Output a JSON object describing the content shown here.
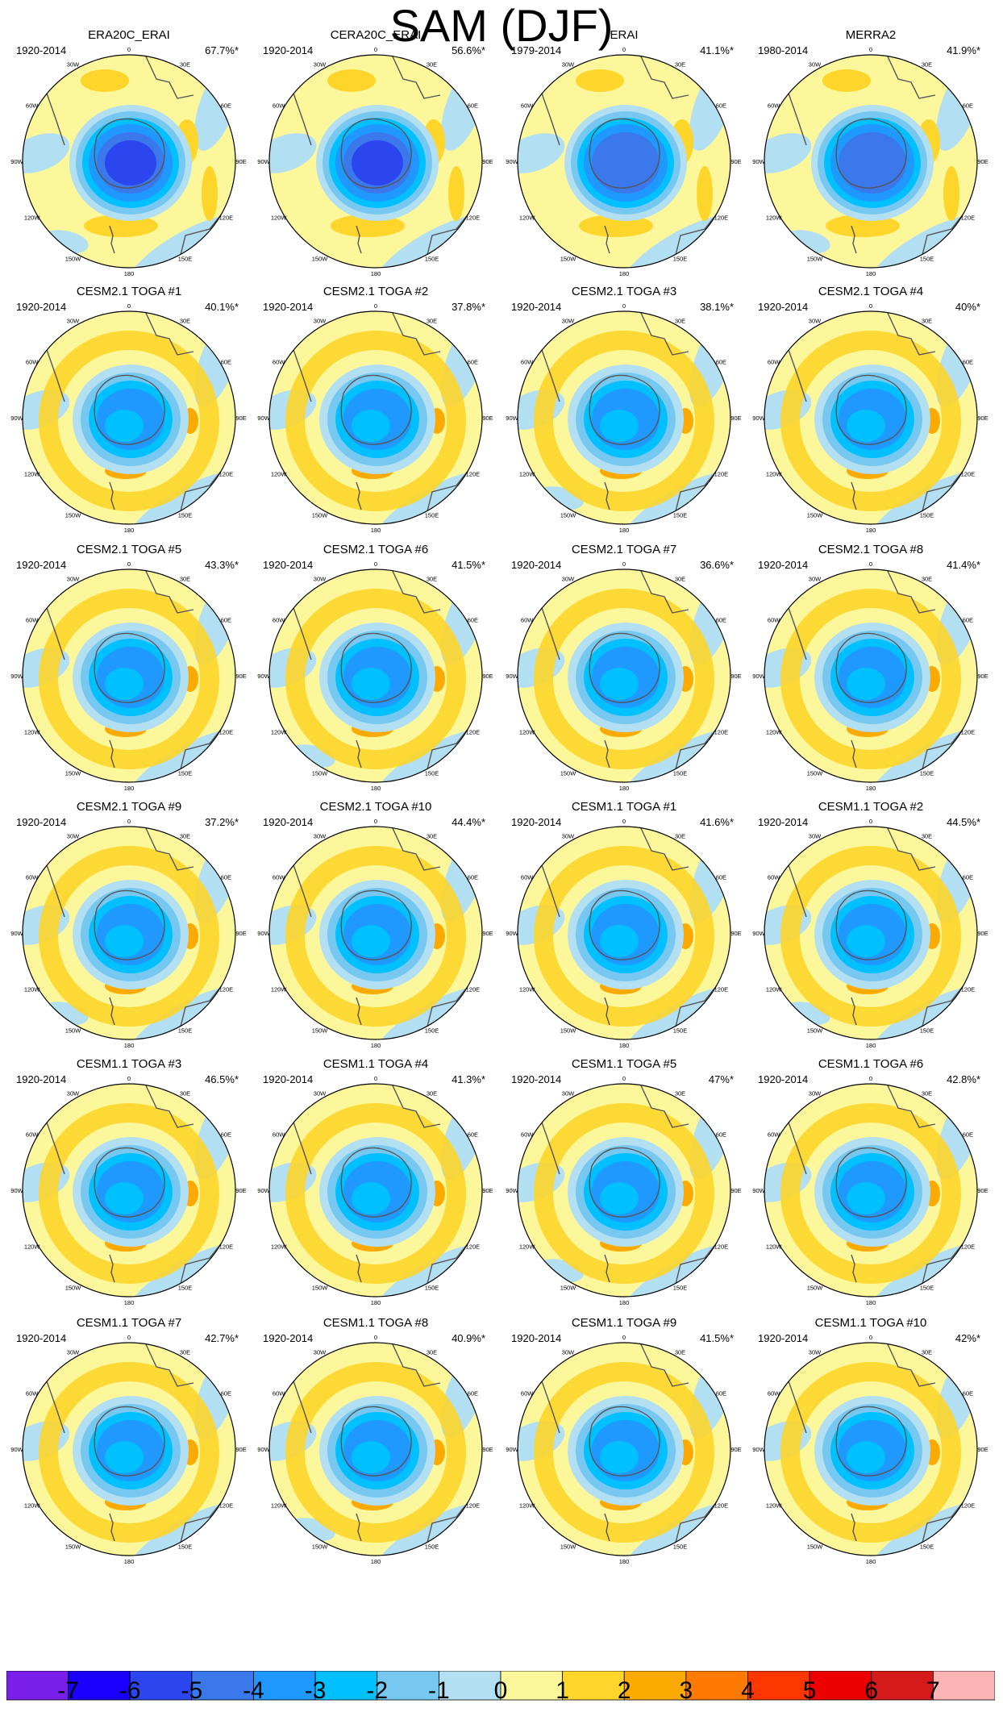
{
  "title": "SAM (DJF)",
  "lon_labels": [
    "0",
    "30E",
    "60E",
    "90E",
    "120E",
    "150E",
    "180",
    "150W",
    "120W",
    "90W",
    "60W",
    "30W"
  ],
  "panels": [
    {
      "title": "ERA20C_ERAI",
      "period": "1920-2014",
      "percent": "67.7%*"
    },
    {
      "title": "CERA20C_ERAI",
      "period": "1920-2014",
      "percent": "56.6%*"
    },
    {
      "title": "ERAI",
      "period": "1979-2014",
      "percent": "41.1%*"
    },
    {
      "title": "MERRA2",
      "period": "1980-2014",
      "percent": "41.9%*"
    },
    {
      "title": "CESM2.1 TOGA #1",
      "period": "1920-2014",
      "percent": "40.1%*"
    },
    {
      "title": "CESM2.1 TOGA #2",
      "period": "1920-2014",
      "percent": "37.8%*"
    },
    {
      "title": "CESM2.1 TOGA #3",
      "period": "1920-2014",
      "percent": "38.1%*"
    },
    {
      "title": "CESM2.1 TOGA #4",
      "period": "1920-2014",
      "percent": "40%*"
    },
    {
      "title": "CESM2.1 TOGA #5",
      "period": "1920-2014",
      "percent": "43.3%*"
    },
    {
      "title": "CESM2.1 TOGA #6",
      "period": "1920-2014",
      "percent": "41.5%*"
    },
    {
      "title": "CESM2.1 TOGA #7",
      "period": "1920-2014",
      "percent": "36.6%*"
    },
    {
      "title": "CESM2.1 TOGA #8",
      "period": "1920-2014",
      "percent": "41.4%*"
    },
    {
      "title": "CESM2.1 TOGA #9",
      "period": "1920-2014",
      "percent": "37.2%*"
    },
    {
      "title": "CESM2.1 TOGA #10",
      "period": "1920-2014",
      "percent": "44.4%*"
    },
    {
      "title": "CESM1.1 TOGA #1",
      "period": "1920-2014",
      "percent": "41.6%*"
    },
    {
      "title": "CESM1.1 TOGA #2",
      "period": "1920-2014",
      "percent": "44.5%*"
    },
    {
      "title": "CESM1.1 TOGA #3",
      "period": "1920-2014",
      "percent": "46.5%*"
    },
    {
      "title": "CESM1.1 TOGA #4",
      "period": "1920-2014",
      "percent": "41.3%*"
    },
    {
      "title": "CESM1.1 TOGA #5",
      "period": "1920-2014",
      "percent": "47%*"
    },
    {
      "title": "CESM1.1 TOGA #6",
      "period": "1920-2014",
      "percent": "42.8%*"
    },
    {
      "title": "CESM1.1 TOGA #7",
      "period": "1920-2014",
      "percent": "42.7%*"
    },
    {
      "title": "CESM1.1 TOGA #8",
      "period": "1920-2014",
      "percent": "40.9%*"
    },
    {
      "title": "CESM1.1 TOGA #9",
      "period": "1920-2014",
      "percent": "41.5%*"
    },
    {
      "title": "CESM1.1 TOGA #10",
      "period": "1920-2014",
      "percent": "42%*"
    }
  ],
  "colorbar": {
    "colors": [
      "#7a1fea",
      "#1a00ff",
      "#2b45ef",
      "#3a78ec",
      "#1f98ff",
      "#00c0ff",
      "#77c8f0",
      "#b3dff2",
      "#fdf79c",
      "#fdd52b",
      "#fdaa00",
      "#fe7a00",
      "#fe3700",
      "#ef0000",
      "#d41a1a",
      "#fcb3b3"
    ],
    "labels": [
      "-7",
      "-6",
      "-5",
      "-4",
      "-3",
      "-2",
      "-1",
      "0",
      "1",
      "2",
      "3",
      "4",
      "5",
      "6",
      "7"
    ]
  }
}
